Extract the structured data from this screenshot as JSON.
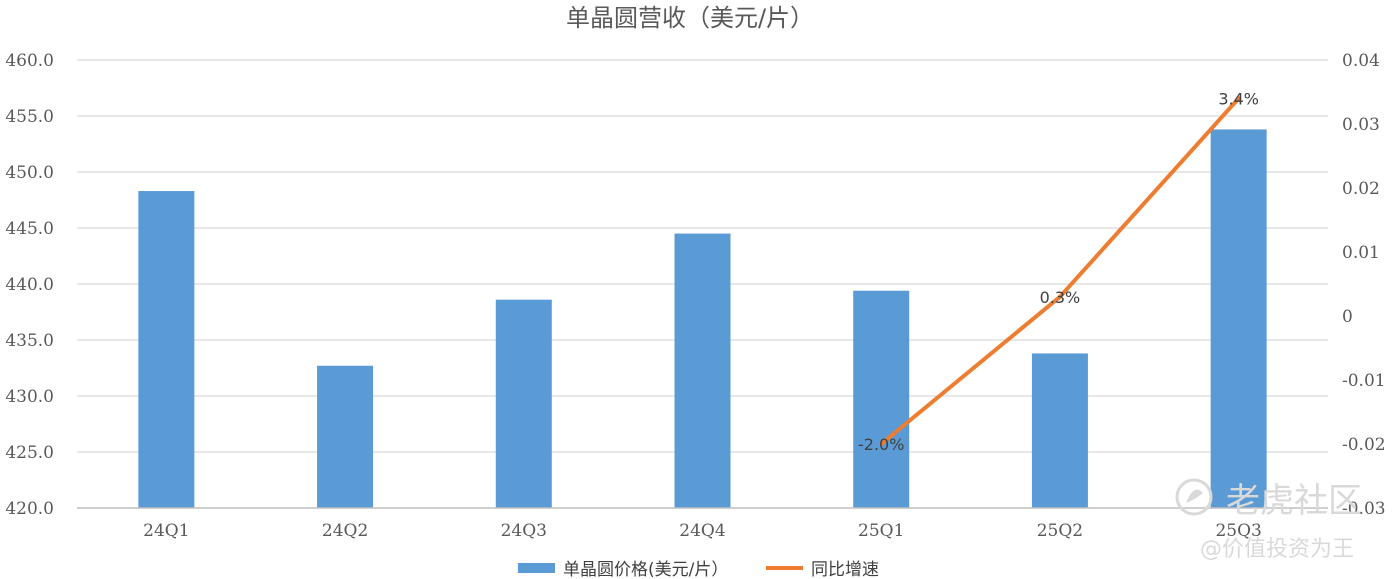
{
  "chart_data": {
    "type": "bar",
    "title": "单晶圆营收（美元/片）",
    "categories": [
      "24Q1",
      "24Q2",
      "24Q3",
      "24Q4",
      "25Q1",
      "25Q2",
      "25Q3"
    ],
    "series": [
      {
        "name": "单晶圆价格(美元/片）",
        "type": "bar",
        "axis": "left",
        "color": "#5b9bd5",
        "values": [
          448.3,
          432.7,
          438.6,
          444.5,
          439.4,
          433.8,
          453.8
        ]
      },
      {
        "name": "同比增速",
        "type": "line",
        "axis": "right",
        "color": "#ed7d31",
        "values": [
          null,
          null,
          null,
          null,
          -0.02,
          0.003,
          0.034
        ],
        "data_labels": [
          "",
          "",
          "",
          "",
          "-2.0%",
          "0.3%",
          "3.4%"
        ]
      }
    ],
    "y_left": {
      "min": 420,
      "max": 460,
      "step": 5,
      "tick_labels": [
        "420.0",
        "425.0",
        "430.0",
        "435.0",
        "440.0",
        "445.0",
        "450.0",
        "455.0",
        "460.0"
      ]
    },
    "y_right": {
      "min": -0.03,
      "max": 0.04,
      "step": 0.01,
      "tick_labels": [
        "-0.03",
        "-0.02",
        "-0.01",
        "0",
        "0.01",
        "0.02",
        "0.03",
        "0.04"
      ]
    },
    "grid": true,
    "legend_position": "bottom"
  },
  "watermark": {
    "brand": "老虎社区",
    "handle": "@价值投资为王",
    "icon": "tiger-logo-icon"
  }
}
